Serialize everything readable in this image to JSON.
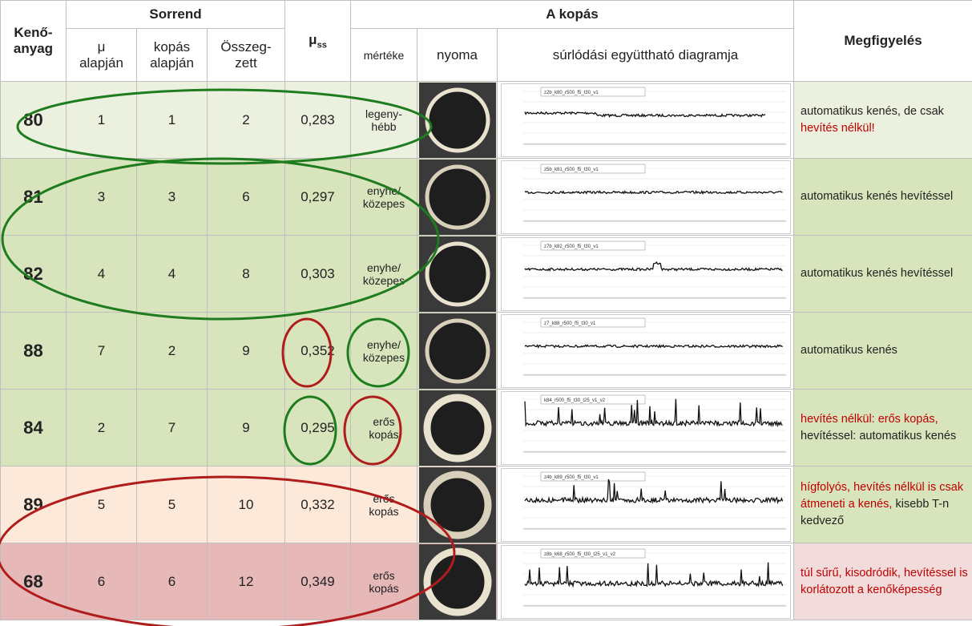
{
  "header": {
    "lubricant": "Kenő-\nanyag",
    "ranking": "Sorrend",
    "by_mu": "μ\nalapján",
    "by_wear": "kopás\nalapján",
    "total": "Összeg-\nzett",
    "mu_ss": {
      "symbol": "μ",
      "sub": "ss"
    },
    "wear": "A kopás",
    "extent": "mértéke",
    "trace": "nyoma",
    "diagram": "súrlódási együttható diagramja",
    "observation": "Megfigyelés"
  },
  "rows": [
    {
      "id": "80",
      "by_mu": "1",
      "by_wear": "1",
      "total": "2",
      "mu_ss": "0,283",
      "extent": "legeny-\nhébb",
      "plot_title": "z2b_k80_r500_f5_t30_v1",
      "observation": [
        {
          "text": "automatikus kenés, de csak ",
          "color": "#222222"
        },
        {
          "text": "hevítés nélkül!",
          "color": "#c00000"
        }
      ]
    },
    {
      "id": "81",
      "by_mu": "3",
      "by_wear": "3",
      "total": "6",
      "mu_ss": "0,297",
      "extent": "enyhe/\nközepes",
      "plot_title": "z5b_k81_r500_f5_t30_v1",
      "observation": [
        {
          "text": "automatikus kenés hevítéssel",
          "color": "#222222"
        }
      ]
    },
    {
      "id": "82",
      "by_mu": "4",
      "by_wear": "4",
      "total": "8",
      "mu_ss": "0,303",
      "extent": "enyhe/\nközepes",
      "plot_title": "z7b_k82_r500_f5_t30_v1",
      "observation": [
        {
          "text": "automatikus kenés hevítéssel",
          "color": "#222222"
        }
      ]
    },
    {
      "id": "88",
      "by_mu": "7",
      "by_wear": "2",
      "total": "9",
      "mu_ss": "0,352",
      "extent": "enyhe/\nközepes",
      "plot_title": "z7_k88_r500_f5_t30_v1",
      "observation": [
        {
          "text": "automatikus kenés",
          "color": "#222222"
        }
      ]
    },
    {
      "id": "84",
      "by_mu": "2",
      "by_wear": "7",
      "total": "9",
      "mu_ss": "0,295",
      "extent": "erős\nkopás",
      "plot_title": "k84_r500_f5_t30_t25_v1_v2",
      "observation": [
        {
          "text": "hevítés nélkül: erős kopás, ",
          "color": "#c00000"
        },
        {
          "text": "hevítéssel: automatikus kenés",
          "color": "#222222"
        }
      ]
    },
    {
      "id": "89",
      "by_mu": "5",
      "by_wear": "5",
      "total": "10",
      "mu_ss": "0,332",
      "extent": "erős\nkopás",
      "plot_title": "z4b_k89_r500_f5_t30_v1",
      "observation": [
        {
          "text": "hígfolyós, hevítés nélkül is csak átmeneti a kenés, ",
          "color": "#c00000"
        },
        {
          "text": "kisebb T-n kedvező",
          "color": "#222222"
        }
      ]
    },
    {
      "id": "68",
      "by_mu": "6",
      "by_wear": "6",
      "total": "12",
      "mu_ss": "0,349",
      "extent": "erős\nkopás",
      "plot_title": "z8b_k68_r500_f5_t30_t25_v1_v2",
      "observation": [
        {
          "text": "túl sűrű, kisodródik, hevítéssel is korlátozott a kenőképesség",
          "color": "#c00000"
        }
      ]
    }
  ]
}
